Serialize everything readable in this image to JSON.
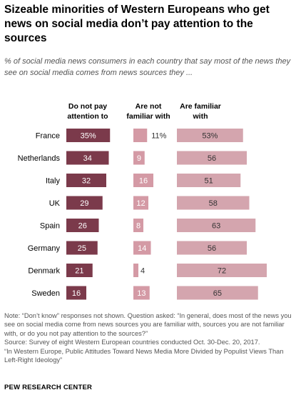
{
  "title": "Sizeable minorities of Western Europeans who get news on social media don’t pay attention to the sources",
  "subtitle": "% of social media news consumers in each country that say most of the news they see on social media comes from news sources they ...",
  "chart_data": {
    "type": "bar",
    "categories": [
      "France",
      "Netherlands",
      "Italy",
      "UK",
      "Spain",
      "Germany",
      "Denmark",
      "Sweden"
    ],
    "series": [
      {
        "name": "Do not pay attention to",
        "values": [
          35,
          34,
          32,
          29,
          26,
          25,
          21,
          16
        ],
        "color": "#7b3a4b",
        "label_color": "#ffffff"
      },
      {
        "name": "Are not familiar with",
        "values": [
          11,
          9,
          16,
          12,
          8,
          14,
          4,
          13
        ],
        "color": "#d49aa5",
        "label_color": "#ffffff"
      },
      {
        "name": "Are familiar with",
        "values": [
          53,
          56,
          51,
          58,
          63,
          56,
          72,
          65
        ],
        "color": "#d4a5ae",
        "label_color": "#333333"
      }
    ],
    "first_row_suffix": "%"
  },
  "notes": [
    "Note: “Don’t know” responses not shown. Question asked: “In general, does most of the news you see on social media come from news sources you are familiar with, sources you are not familiar with, or do you not pay attention to the sources?”",
    "Source: Survey of eight Western European countries conducted Oct. 30-Dec. 20, 2017.",
    "“In Western Europe, Public Attitudes Toward News Media More Divided by Populist Views Than Left-Right Ideology”"
  ],
  "footer": "PEW RESEARCH CENTER"
}
